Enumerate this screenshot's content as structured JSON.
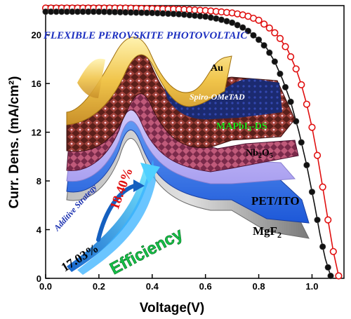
{
  "chart_data": {
    "type": "line",
    "title": "",
    "xlabel": "Voltage(V)",
    "ylabel": "Curr. Dens. (mA/cm²)",
    "xlim": [
      0.0,
      1.12
    ],
    "ylim": [
      0,
      22.4
    ],
    "x_ticks": [
      "0.0",
      "0.2",
      "0.4",
      "0.6",
      "0.8",
      "1.0"
    ],
    "y_ticks": [
      "0",
      "4",
      "8",
      "12",
      "16",
      "20"
    ],
    "grid": false,
    "series": [
      {
        "color": "#e01010",
        "marker": "circle-open",
        "x": [
          0.0,
          0.1,
          0.2,
          0.3,
          0.4,
          0.5,
          0.6,
          0.7,
          0.75,
          0.8,
          0.85,
          0.88,
          0.91,
          0.94,
          0.96,
          0.98,
          1.0,
          1.02,
          1.04,
          1.06,
          1.08,
          1.1
        ],
        "y": [
          22.2,
          22.2,
          22.2,
          22.2,
          22.15,
          22.1,
          22.0,
          21.8,
          21.6,
          21.2,
          20.4,
          19.7,
          18.7,
          17.2,
          15.9,
          14.3,
          12.4,
          10.1,
          7.5,
          4.8,
          2.2,
          0.2
        ]
      },
      {
        "color": "#111111",
        "marker": "circle-filled",
        "x": [
          0.0,
          0.1,
          0.2,
          0.3,
          0.4,
          0.5,
          0.6,
          0.65,
          0.7,
          0.75,
          0.8,
          0.83,
          0.86,
          0.89,
          0.92,
          0.95,
          0.98,
          1.01,
          1.03,
          1.05,
          1.07
        ],
        "y": [
          21.9,
          21.9,
          21.9,
          21.85,
          21.8,
          21.7,
          21.5,
          21.3,
          21.0,
          20.5,
          19.6,
          18.9,
          17.8,
          16.3,
          14.5,
          12.1,
          9.3,
          6.0,
          3.6,
          1.6,
          0.2
        ]
      }
    ],
    "annotations": {
      "banner": "FLEXIBLE PEROVSKITE PHOTOVOLTAIC",
      "layers": {
        "au": "Au",
        "spiro": "Spiro-OMeTAD",
        "mapbi_prefix": "MAPbI",
        "mapbi_sub": "3",
        "mapbi_suffix": "-DS",
        "nb_prefix": "Nb",
        "nb_sub1": "2",
        "nb_mid": "O",
        "nb_sub2": "5",
        "pet": "PET/ITO",
        "mgf_prefix": "MgF",
        "mgf_sub": "2"
      },
      "strategy": "Additive Strategy",
      "eff_before": "17.03%",
      "eff_after": "18.40%",
      "efficiency_word": "Efficiency"
    }
  }
}
